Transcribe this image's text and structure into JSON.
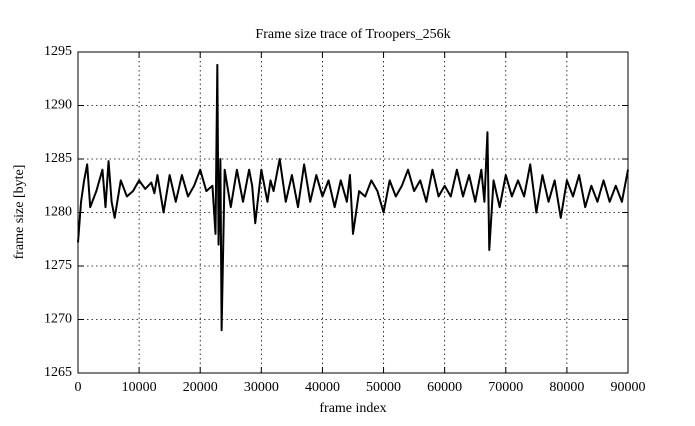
{
  "chart_data": {
    "type": "line",
    "title": "Frame size trace of Troopers_256k",
    "x_label": "frame index",
    "y_label": "frame size [byte]",
    "x": [
      0,
      500,
      1000,
      1500,
      2000,
      3000,
      4000,
      4500,
      5000,
      5500,
      6000,
      7000,
      8000,
      9000,
      10000,
      11000,
      12000,
      12500,
      13000,
      14000,
      15000,
      16000,
      17000,
      18000,
      19000,
      20000,
      21000,
      22000,
      22500,
      22800,
      23000,
      23300,
      23500,
      24000,
      25000,
      26000,
      27000,
      28000,
      28500,
      29000,
      30000,
      31000,
      31500,
      32000,
      33000,
      34000,
      35000,
      36000,
      37000,
      38000,
      39000,
      40000,
      41000,
      42000,
      43000,
      44000,
      44500,
      45000,
      46000,
      47000,
      48000,
      49000,
      50000,
      51000,
      52000,
      53000,
      54000,
      55000,
      56000,
      57000,
      58000,
      59000,
      60000,
      61000,
      62000,
      63000,
      64000,
      65000,
      66000,
      66500,
      67000,
      67300,
      68000,
      69000,
      70000,
      71000,
      72000,
      73000,
      74000,
      75000,
      76000,
      77000,
      78000,
      79000,
      80000,
      81000,
      82000,
      83000,
      84000,
      85000,
      86000,
      87000,
      88000,
      89000,
      90000
    ],
    "series": [
      {
        "name": "Troopers_256k",
        "color": "#000000",
        "values": [
          1277.2,
          1281,
          1283,
          1284.5,
          1280.5,
          1282,
          1284,
          1280.5,
          1284.8,
          1281,
          1279.5,
          1283,
          1281.5,
          1282,
          1283,
          1282.2,
          1282.8,
          1281.8,
          1283.5,
          1280,
          1283.5,
          1281,
          1283.5,
          1281.5,
          1282.5,
          1284,
          1282,
          1282.5,
          1278,
          1293.8,
          1277,
          1285,
          1269,
          1284,
          1280.5,
          1284,
          1281,
          1284,
          1282.5,
          1279,
          1284,
          1281,
          1283,
          1282,
          1285,
          1281,
          1283.5,
          1280.5,
          1284.5,
          1281,
          1283.5,
          1281.5,
          1283,
          1280.5,
          1283,
          1281,
          1283.5,
          1278,
          1282,
          1281.5,
          1283,
          1282,
          1280,
          1283,
          1281.5,
          1282.5,
          1284,
          1282,
          1283,
          1281,
          1284,
          1281.5,
          1282.5,
          1281.5,
          1284,
          1281.5,
          1283.5,
          1281,
          1284,
          1281,
          1287.5,
          1276.5,
          1283,
          1280.5,
          1283.5,
          1281.5,
          1283,
          1281.5,
          1284.5,
          1280,
          1283.5,
          1281,
          1283,
          1279.5,
          1283,
          1281.5,
          1283.5,
          1280.5,
          1282.5,
          1281,
          1283,
          1281,
          1282.5,
          1281,
          1284
        ]
      }
    ],
    "xlim": [
      0,
      90000
    ],
    "ylim": [
      1265,
      1295
    ],
    "xticks": [
      0,
      10000,
      20000,
      30000,
      40000,
      50000,
      60000,
      70000,
      80000,
      90000
    ],
    "yticks": [
      1265,
      1270,
      1275,
      1280,
      1285,
      1290,
      1295
    ],
    "grid": true
  }
}
